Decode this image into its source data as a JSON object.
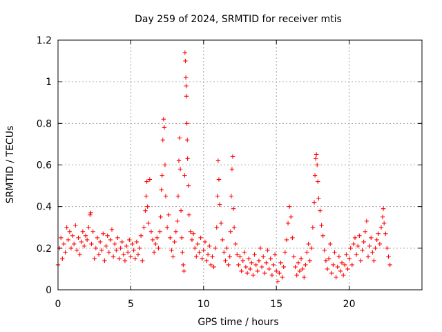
{
  "chart_data": {
    "type": "scatter",
    "title": "Day 259 of 2024, SRMTID for receiver mtis",
    "xlabel": "GPS time / hours",
    "ylabel": "SRMTID / TECUs",
    "xlim": [
      0,
      25
    ],
    "ylim": [
      0,
      1.2
    ],
    "x_ticks": [
      0,
      5,
      10,
      15,
      20
    ],
    "x_tick_labels": [
      "0",
      "5",
      "10",
      "15",
      "20"
    ],
    "y_ticks": [
      0,
      0.2,
      0.4,
      0.6,
      0.8,
      1,
      1.2
    ],
    "y_tick_labels": [
      "0",
      "0.2",
      "0.4",
      "0.6",
      "0.8",
      "1",
      "1.2"
    ],
    "grid": true,
    "marker": "plus",
    "series": [
      {
        "name": "SRMTID",
        "color": "#ff0000",
        "x": [
          0.0,
          0.1,
          0.2,
          0.3,
          0.4,
          0.5,
          0.6,
          0.7,
          0.8,
          0.9,
          1.0,
          1.1,
          1.2,
          1.3,
          1.4,
          1.5,
          1.6,
          1.7,
          1.8,
          1.9,
          2.0,
          2.1,
          2.2,
          2.25,
          2.3,
          2.4,
          2.5,
          2.6,
          2.7,
          2.8,
          2.9,
          3.0,
          3.1,
          3.2,
          3.3,
          3.4,
          3.5,
          3.6,
          3.7,
          3.8,
          3.9,
          4.0,
          4.1,
          4.2,
          4.3,
          4.4,
          4.5,
          4.6,
          4.7,
          4.8,
          4.9,
          5.0,
          5.1,
          5.2,
          5.3,
          5.4,
          5.5,
          5.6,
          5.7,
          5.8,
          5.9,
          6.0,
          6.05,
          6.1,
          6.15,
          6.2,
          6.3,
          6.4,
          6.5,
          6.6,
          6.7,
          6.8,
          6.9,
          7.0,
          7.05,
          7.1,
          7.15,
          7.2,
          7.25,
          7.3,
          7.35,
          7.4,
          7.5,
          7.6,
          7.7,
          7.8,
          7.9,
          8.0,
          8.1,
          8.2,
          8.25,
          8.3,
          8.35,
          8.4,
          8.45,
          8.5,
          8.55,
          8.6,
          8.65,
          8.7,
          8.72,
          8.75,
          8.78,
          8.8,
          8.82,
          8.85,
          8.88,
          8.9,
          8.95,
          9.0,
          9.1,
          9.2,
          9.3,
          9.4,
          9.5,
          9.6,
          9.7,
          9.8,
          9.9,
          10.0,
          10.1,
          10.2,
          10.3,
          10.4,
          10.5,
          10.6,
          10.7,
          10.8,
          10.9,
          10.95,
          11.0,
          11.05,
          11.1,
          11.2,
          11.3,
          11.4,
          11.5,
          11.6,
          11.7,
          11.8,
          11.85,
          11.9,
          11.95,
          12.0,
          12.05,
          12.1,
          12.2,
          12.3,
          12.4,
          12.5,
          12.6,
          12.7,
          12.8,
          12.9,
          13.0,
          13.1,
          13.2,
          13.3,
          13.4,
          13.5,
          13.6,
          13.7,
          13.8,
          13.9,
          14.0,
          14.1,
          14.2,
          14.3,
          14.4,
          14.5,
          14.6,
          14.7,
          14.8,
          14.9,
          15.0,
          15.1,
          15.2,
          15.3,
          15.4,
          15.5,
          15.6,
          15.7,
          15.8,
          15.9,
          16.0,
          16.1,
          16.2,
          16.3,
          16.4,
          16.5,
          16.6,
          16.7,
          16.8,
          16.9,
          17.0,
          17.1,
          17.2,
          17.3,
          17.4,
          17.5,
          17.6,
          17.65,
          17.7,
          17.75,
          17.8,
          17.85,
          17.9,
          18.0,
          18.1,
          18.2,
          18.3,
          18.4,
          18.5,
          18.6,
          18.7,
          18.8,
          18.9,
          19.0,
          19.1,
          19.2,
          19.3,
          19.4,
          19.5,
          19.6,
          19.7,
          19.8,
          19.9,
          20.0,
          20.1,
          20.2,
          20.3,
          20.4,
          20.5,
          20.6,
          20.7,
          20.8,
          20.9,
          21.0,
          21.1,
          21.2,
          21.3,
          21.4,
          21.5,
          21.6,
          21.7,
          21.8,
          21.9,
          22.0,
          22.1,
          22.2,
          22.3,
          22.35,
          22.4,
          22.5,
          22.6,
          22.7,
          22.8
        ],
        "y": [
          0.12,
          0.2,
          0.25,
          0.15,
          0.22,
          0.18,
          0.3,
          0.24,
          0.28,
          0.2,
          0.26,
          0.22,
          0.31,
          0.19,
          0.25,
          0.17,
          0.23,
          0.28,
          0.21,
          0.26,
          0.24,
          0.3,
          0.36,
          0.37,
          0.22,
          0.28,
          0.15,
          0.2,
          0.25,
          0.17,
          0.23,
          0.19,
          0.27,
          0.14,
          0.21,
          0.26,
          0.18,
          0.24,
          0.29,
          0.16,
          0.22,
          0.19,
          0.25,
          0.15,
          0.2,
          0.23,
          0.17,
          0.14,
          0.21,
          0.18,
          0.24,
          0.16,
          0.22,
          0.19,
          0.15,
          0.23,
          0.17,
          0.2,
          0.26,
          0.14,
          0.3,
          0.38,
          0.45,
          0.52,
          0.4,
          0.32,
          0.53,
          0.28,
          0.24,
          0.18,
          0.22,
          0.25,
          0.2,
          0.28,
          0.35,
          0.48,
          0.55,
          0.72,
          0.82,
          0.78,
          0.6,
          0.45,
          0.3,
          0.36,
          0.25,
          0.19,
          0.16,
          0.23,
          0.28,
          0.33,
          0.45,
          0.62,
          0.73,
          0.58,
          0.38,
          0.25,
          0.18,
          0.12,
          0.09,
          0.55,
          1.14,
          1.1,
          1.02,
          0.98,
          0.93,
          0.8,
          0.72,
          0.63,
          0.5,
          0.36,
          0.28,
          0.24,
          0.27,
          0.2,
          0.16,
          0.22,
          0.18,
          0.25,
          0.15,
          0.19,
          0.23,
          0.14,
          0.17,
          0.21,
          0.12,
          0.16,
          0.11,
          0.2,
          0.3,
          0.45,
          0.62,
          0.53,
          0.41,
          0.32,
          0.24,
          0.18,
          0.14,
          0.2,
          0.12,
          0.16,
          0.28,
          0.45,
          0.58,
          0.64,
          0.39,
          0.3,
          0.22,
          0.17,
          0.12,
          0.16,
          0.09,
          0.14,
          0.18,
          0.11,
          0.08,
          0.15,
          0.1,
          0.13,
          0.07,
          0.17,
          0.12,
          0.09,
          0.14,
          0.2,
          0.11,
          0.16,
          0.08,
          0.13,
          0.19,
          0.1,
          0.15,
          0.07,
          0.12,
          0.17,
          0.09,
          0.04,
          0.08,
          0.13,
          0.06,
          0.11,
          0.18,
          0.24,
          0.32,
          0.4,
          0.35,
          0.25,
          0.16,
          0.11,
          0.07,
          0.13,
          0.09,
          0.15,
          0.1,
          0.06,
          0.12,
          0.18,
          0.22,
          0.14,
          0.2,
          0.3,
          0.42,
          0.55,
          0.63,
          0.65,
          0.6,
          0.52,
          0.44,
          0.38,
          0.31,
          0.26,
          0.19,
          0.14,
          0.1,
          0.15,
          0.22,
          0.08,
          0.12,
          0.18,
          0.06,
          0.11,
          0.16,
          0.09,
          0.13,
          0.07,
          0.12,
          0.17,
          0.1,
          0.15,
          0.2,
          0.12,
          0.22,
          0.25,
          0.17,
          0.21,
          0.26,
          0.14,
          0.19,
          0.23,
          0.28,
          0.33,
          0.16,
          0.21,
          0.25,
          0.18,
          0.14,
          0.2,
          0.24,
          0.27,
          0.22,
          0.3,
          0.35,
          0.39,
          0.32,
          0.27,
          0.2,
          0.16,
          0.12
        ]
      }
    ]
  }
}
